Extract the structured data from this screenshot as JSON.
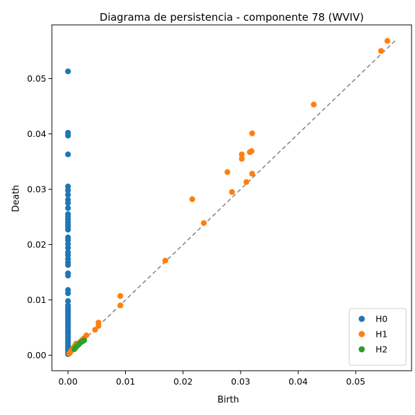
{
  "chart_data": {
    "type": "scatter",
    "title": "Diagrama de persistencia - componente 78 (WVIV)",
    "xlabel": "Birth",
    "ylabel": "Death",
    "xlim": [
      -0.0028,
      0.0597
    ],
    "ylim": [
      -0.0028,
      0.0597
    ],
    "xticks": [
      0.0,
      0.01,
      0.02,
      0.03,
      0.04,
      0.05
    ],
    "yticks": [
      0.0,
      0.01,
      0.02,
      0.03,
      0.04,
      0.05
    ],
    "xtick_labels": [
      "0.00",
      "0.01",
      "0.02",
      "0.03",
      "0.04",
      "0.05"
    ],
    "ytick_labels": [
      "0.00",
      "0.01",
      "0.02",
      "0.03",
      "0.04",
      "0.05"
    ],
    "diagonal": {
      "from": 0.0,
      "to": 0.057,
      "style": "dashed",
      "color": "#808080"
    },
    "legend_position": "lower-right",
    "grid": false,
    "series": [
      {
        "name": "H0",
        "color": "#1f77b4",
        "points": [
          [
            0,
            0.0513
          ],
          [
            0,
            0.0402
          ],
          [
            0,
            0.0397
          ],
          [
            0,
            0.0363
          ],
          [
            0,
            0.0305
          ],
          [
            0,
            0.0298
          ],
          [
            0,
            0.029
          ],
          [
            0,
            0.0281
          ],
          [
            0,
            0.0275
          ],
          [
            0,
            0.0266
          ],
          [
            0,
            0.0255
          ],
          [
            0,
            0.025
          ],
          [
            0,
            0.0245
          ],
          [
            0,
            0.024
          ],
          [
            0,
            0.0236
          ],
          [
            0,
            0.0232
          ],
          [
            0,
            0.0227
          ],
          [
            0,
            0.0213
          ],
          [
            0,
            0.0208
          ],
          [
            0,
            0.0201
          ],
          [
            0,
            0.0194
          ],
          [
            0,
            0.0186
          ],
          [
            0,
            0.0181
          ],
          [
            0,
            0.0174
          ],
          [
            0,
            0.0168
          ],
          [
            0,
            0.0163
          ],
          [
            0,
            0.0148
          ],
          [
            0,
            0.0144
          ],
          [
            0,
            0.0118
          ],
          [
            0,
            0.0112
          ],
          [
            0,
            0.0098
          ],
          [
            0,
            0.009
          ],
          [
            0,
            0.0086
          ],
          [
            0,
            0.0082
          ],
          [
            0,
            0.0078
          ],
          [
            0,
            0.0074
          ],
          [
            0,
            0.007
          ],
          [
            0,
            0.0066
          ],
          [
            0,
            0.0062
          ],
          [
            0,
            0.0058
          ],
          [
            0,
            0.0054
          ],
          [
            0,
            0.005
          ],
          [
            0,
            0.0046
          ],
          [
            0,
            0.0042
          ],
          [
            0,
            0.0038
          ],
          [
            0,
            0.0034
          ],
          [
            0,
            0.003
          ],
          [
            0,
            0.0026
          ],
          [
            0,
            0.0022
          ],
          [
            0,
            0.0018
          ],
          [
            0,
            0.0014
          ],
          [
            0,
            0.001
          ],
          [
            0,
            0.0006
          ],
          [
            0,
            0.0002
          ]
        ]
      },
      {
        "name": "H1",
        "color": "#ff7f0e",
        "points": [
          [
            0.0555,
            0.0568
          ],
          [
            0.0544,
            0.055
          ],
          [
            0.0427,
            0.0453
          ],
          [
            0.032,
            0.0401
          ],
          [
            0.0319,
            0.0369
          ],
          [
            0.0316,
            0.0367
          ],
          [
            0.0302,
            0.0363
          ],
          [
            0.0302,
            0.0355
          ],
          [
            0.0277,
            0.0331
          ],
          [
            0.032,
            0.0328
          ],
          [
            0.031,
            0.0313
          ],
          [
            0.0285,
            0.0295
          ],
          [
            0.0216,
            0.0282
          ],
          [
            0.0236,
            0.0239
          ],
          [
            0.0169,
            0.0171
          ],
          [
            0.0091,
            0.0107
          ],
          [
            0.0091,
            0.009
          ],
          [
            0.0053,
            0.0059
          ],
          [
            0.0053,
            0.0053
          ],
          [
            0.0047,
            0.0046
          ],
          [
            0.0032,
            0.0036
          ],
          [
            0.0028,
            0.0031
          ],
          [
            0.0024,
            0.0027
          ],
          [
            0.002,
            0.0023
          ],
          [
            0.0014,
            0.0021
          ],
          [
            0.0012,
            0.0017
          ],
          [
            0.0009,
            0.0013
          ],
          [
            0.0007,
            0.001
          ],
          [
            0.0005,
            0.0007
          ],
          [
            0.0003,
            0.0004
          ],
          [
            0.0002,
            0.0003
          ]
        ]
      },
      {
        "name": "H2",
        "color": "#2ca02c",
        "points": [
          [
            0.0028,
            0.0027
          ],
          [
            0.0025,
            0.0025
          ],
          [
            0.0022,
            0.0023
          ],
          [
            0.0019,
            0.002
          ],
          [
            0.0017,
            0.0018
          ],
          [
            0.0015,
            0.0016
          ],
          [
            0.0013,
            0.0014
          ],
          [
            0.0012,
            0.0012
          ],
          [
            0.0011,
            0.0011
          ]
        ]
      }
    ]
  }
}
